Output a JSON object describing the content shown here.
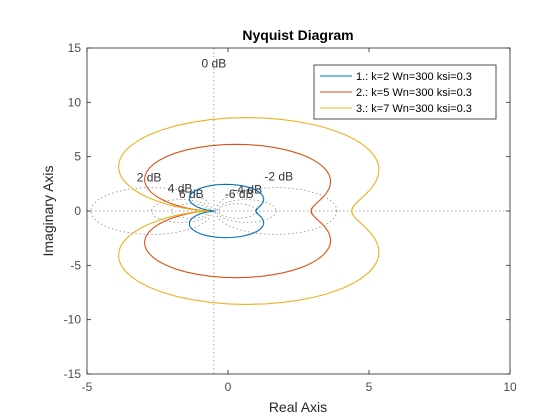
{
  "chart_data": {
    "type": "line",
    "title": "Nyquist Diagram",
    "xlabel": "Real Axis",
    "ylabel": "Imaginary Axis",
    "xlim": [
      -5,
      10
    ],
    "ylim": [
      -15,
      15
    ],
    "xticks": [
      -5,
      0,
      5,
      10
    ],
    "yticks": [
      -15,
      -10,
      -5,
      0,
      5,
      10,
      15
    ],
    "legend_position": "top-right",
    "grid": "dB circles",
    "db_labels": [
      {
        "text": "0 dB",
        "x": -0.5,
        "y": 13.2
      },
      {
        "text": "2 dB",
        "x": -2.8,
        "y": 2.7
      },
      {
        "text": "4 dB",
        "x": -1.7,
        "y": 1.7
      },
      {
        "text": "6 dB",
        "x": -1.3,
        "y": 1.2
      },
      {
        "text": "-2 dB",
        "x": 1.8,
        "y": 2.8
      },
      {
        "text": "-4 dB",
        "x": 0.7,
        "y": 1.6
      },
      {
        "text": "-6 dB",
        "x": 0.4,
        "y": 1.2
      }
    ],
    "series": [
      {
        "name": "1.: k=2 Wn=300 ksi=0.3",
        "color": "#0072BD",
        "params": {
          "k": 2,
          "wn": 300,
          "ksi": 0.3
        }
      },
      {
        "name": "2.: k=5 Wn=300 ksi=0.3",
        "color": "#D95319",
        "params": {
          "k": 5,
          "wn": 300,
          "ksi": 0.3
        }
      },
      {
        "name": "3.: k=7 Wn=300 ksi=0.3",
        "color": "#EDB120",
        "params": {
          "k": 7,
          "wn": 300,
          "ksi": 0.3
        }
      }
    ]
  }
}
